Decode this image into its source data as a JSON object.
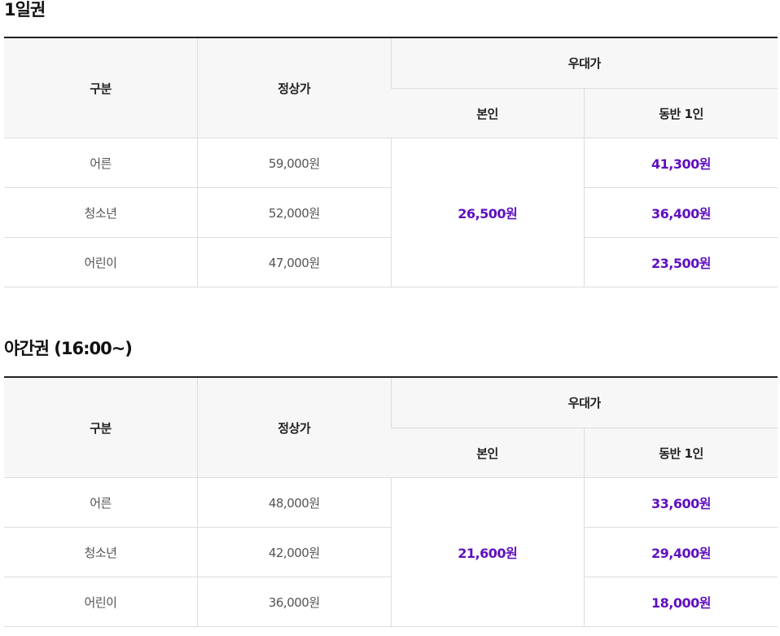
{
  "colors": {
    "promo": "#5f0fbf",
    "header_bg": "#f7f7f7",
    "border": "#dddddd",
    "top_border": "#222222"
  },
  "headers": {
    "category": "구분",
    "regular": "정상가",
    "discount": "우대가",
    "self": "본인",
    "companion": "동반 1인"
  },
  "sections": [
    {
      "title": "1일권",
      "self_price": "26,500원",
      "rows": [
        {
          "label": "어른",
          "regular": "59,000원",
          "companion": "41,300원"
        },
        {
          "label": "청소년",
          "regular": "52,000원",
          "companion": "36,400원"
        },
        {
          "label": "어린이",
          "regular": "47,000원",
          "companion": "23,500원"
        }
      ]
    },
    {
      "title": "야간권 (16:00~)",
      "self_price": "21,600원",
      "rows": [
        {
          "label": "어른",
          "regular": "48,000원",
          "companion": "33,600원"
        },
        {
          "label": "청소년",
          "regular": "42,000원",
          "companion": "29,400원"
        },
        {
          "label": "어린이",
          "regular": "36,000원",
          "companion": "18,000원"
        }
      ]
    }
  ]
}
